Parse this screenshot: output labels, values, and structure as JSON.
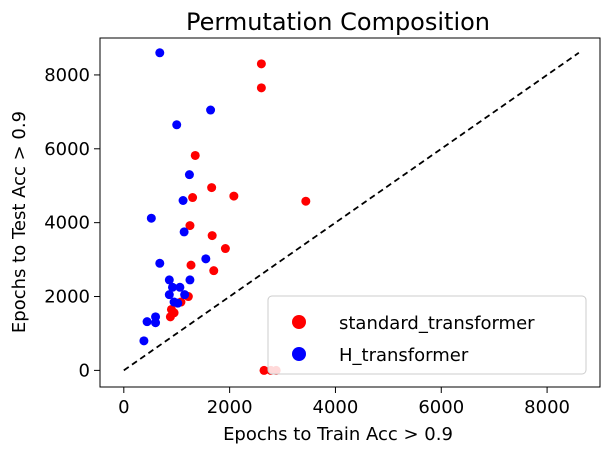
{
  "chart_data": {
    "type": "scatter",
    "title": "Permutation Composition",
    "xlabel": "Epochs to Train Acc > 0.9",
    "ylabel": "Epochs to Test Acc > 0.9",
    "xlim": [
      -450,
      9000
    ],
    "ylim": [
      -450,
      9000
    ],
    "xticks": [
      0,
      2000,
      4000,
      6000,
      8000
    ],
    "yticks": [
      0,
      2000,
      4000,
      6000,
      8000
    ],
    "grid": false,
    "legend_position": "bottom-right",
    "reference_line": {
      "style": "dashed",
      "color": "#000000",
      "from": [
        0,
        0
      ],
      "to": [
        8600,
        8600
      ]
    },
    "series": [
      {
        "name": "standard_transformer",
        "color": "#ff0000",
        "points": [
          [
            2600,
            8300
          ],
          [
            2600,
            7650
          ],
          [
            1350,
            5820
          ],
          [
            1660,
            4950
          ],
          [
            2080,
            4720
          ],
          [
            1300,
            4680
          ],
          [
            3440,
            4580
          ],
          [
            1250,
            3920
          ],
          [
            1670,
            3650
          ],
          [
            1920,
            3300
          ],
          [
            1270,
            2850
          ],
          [
            1700,
            2700
          ],
          [
            1220,
            2000
          ],
          [
            1080,
            1850
          ],
          [
            900,
            1650
          ],
          [
            950,
            1560
          ],
          [
            880,
            1450
          ],
          [
            2650,
            0
          ],
          [
            2780,
            0
          ],
          [
            2880,
            0
          ]
        ]
      },
      {
        "name": "H_transformer",
        "color": "#0000ff",
        "points": [
          [
            680,
            8600
          ],
          [
            1640,
            7050
          ],
          [
            1000,
            6650
          ],
          [
            1240,
            5300
          ],
          [
            1120,
            4600
          ],
          [
            520,
            4120
          ],
          [
            1140,
            3750
          ],
          [
            1550,
            3020
          ],
          [
            680,
            2900
          ],
          [
            1250,
            2450
          ],
          [
            860,
            2450
          ],
          [
            920,
            2250
          ],
          [
            1060,
            2250
          ],
          [
            860,
            2050
          ],
          [
            1150,
            2050
          ],
          [
            950,
            1850
          ],
          [
            1020,
            1820
          ],
          [
            600,
            1450
          ],
          [
            440,
            1320
          ],
          [
            600,
            1290
          ],
          [
            380,
            800
          ]
        ]
      }
    ]
  }
}
